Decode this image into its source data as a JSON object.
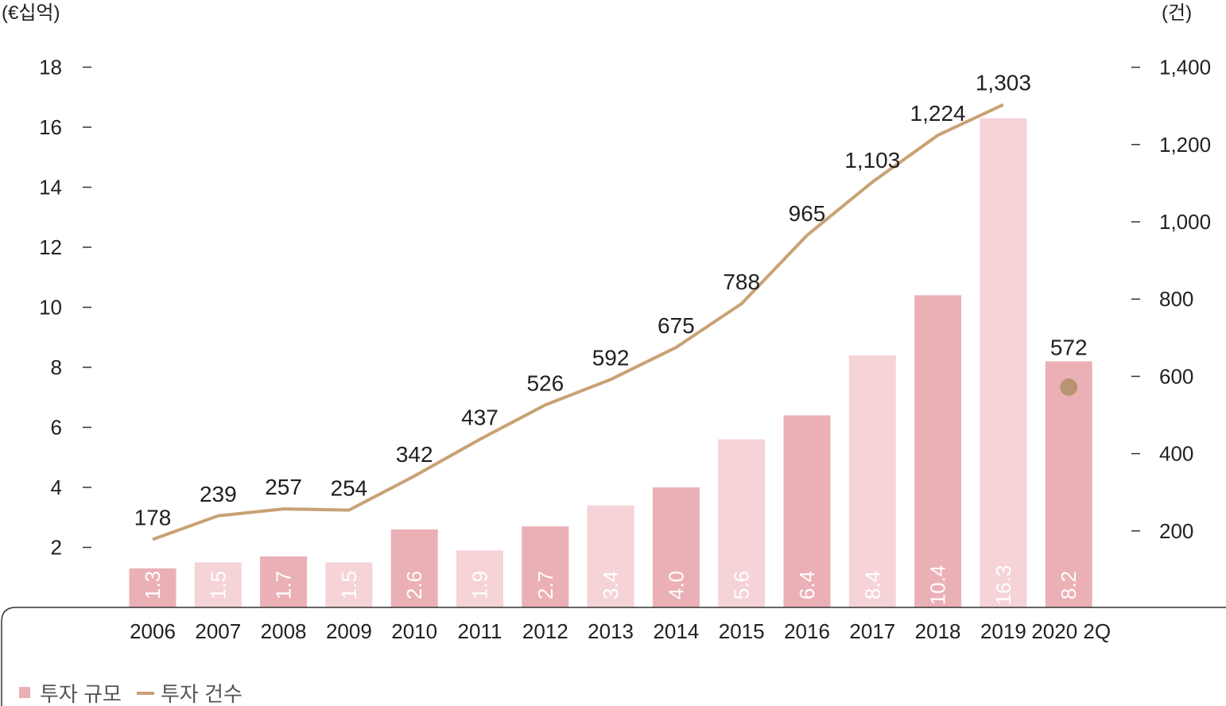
{
  "chart_data": {
    "type": "bar",
    "categories": [
      "2006",
      "2007",
      "2008",
      "2009",
      "2010",
      "2011",
      "2012",
      "2013",
      "2014",
      "2015",
      "2016",
      "2017",
      "2018",
      "2019",
      "2020 2Q"
    ],
    "left_unit": "(€십억)",
    "right_unit": "(건)",
    "left_ticks": [
      "2",
      "4",
      "6",
      "8",
      "10",
      "12",
      "14",
      "16",
      "18"
    ],
    "right_ticks": [
      "200",
      "400",
      "600",
      "800",
      "1,000",
      "1,200",
      "1,400"
    ],
    "ylim_left": [
      0,
      18
    ],
    "ylim_right": [
      0,
      1400
    ],
    "series": [
      {
        "name": "투자 규모",
        "type": "bar",
        "axis": "left",
        "values": [
          1.3,
          1.5,
          1.7,
          1.5,
          2.6,
          1.9,
          2.7,
          3.4,
          4.0,
          5.6,
          6.4,
          8.4,
          10.4,
          16.3,
          8.2
        ],
        "labels": [
          "1.3",
          "1.5",
          "1.7",
          "1.5",
          "2.6",
          "1.9",
          "2.7",
          "3.4",
          "4.0",
          "5.6",
          "6.4",
          "8.4",
          "10.4",
          "16.3",
          "8.2"
        ]
      },
      {
        "name": "투자 건수",
        "type": "line",
        "axis": "right",
        "values": [
          178,
          239,
          257,
          254,
          342,
          437,
          526,
          592,
          675,
          788,
          965,
          1103,
          1224,
          1303,
          572
        ],
        "labels": [
          "178",
          "239",
          "257",
          "254",
          "342",
          "437",
          "526",
          "592",
          "675",
          "788",
          "965",
          "1,103",
          "1,224",
          "1,303",
          "572"
        ]
      }
    ],
    "colors": {
      "bar_dark": "#ebb0b6",
      "bar_light": "#f5d3d7",
      "line": "#c8a275",
      "point_2020": "#b99472",
      "text": "#231f20",
      "legend_text": "#555555",
      "axis": "#333333"
    },
    "legend": {
      "position": "bottom-left",
      "items": [
        "투자 규모",
        "투자 건수"
      ]
    },
    "grid": false
  }
}
